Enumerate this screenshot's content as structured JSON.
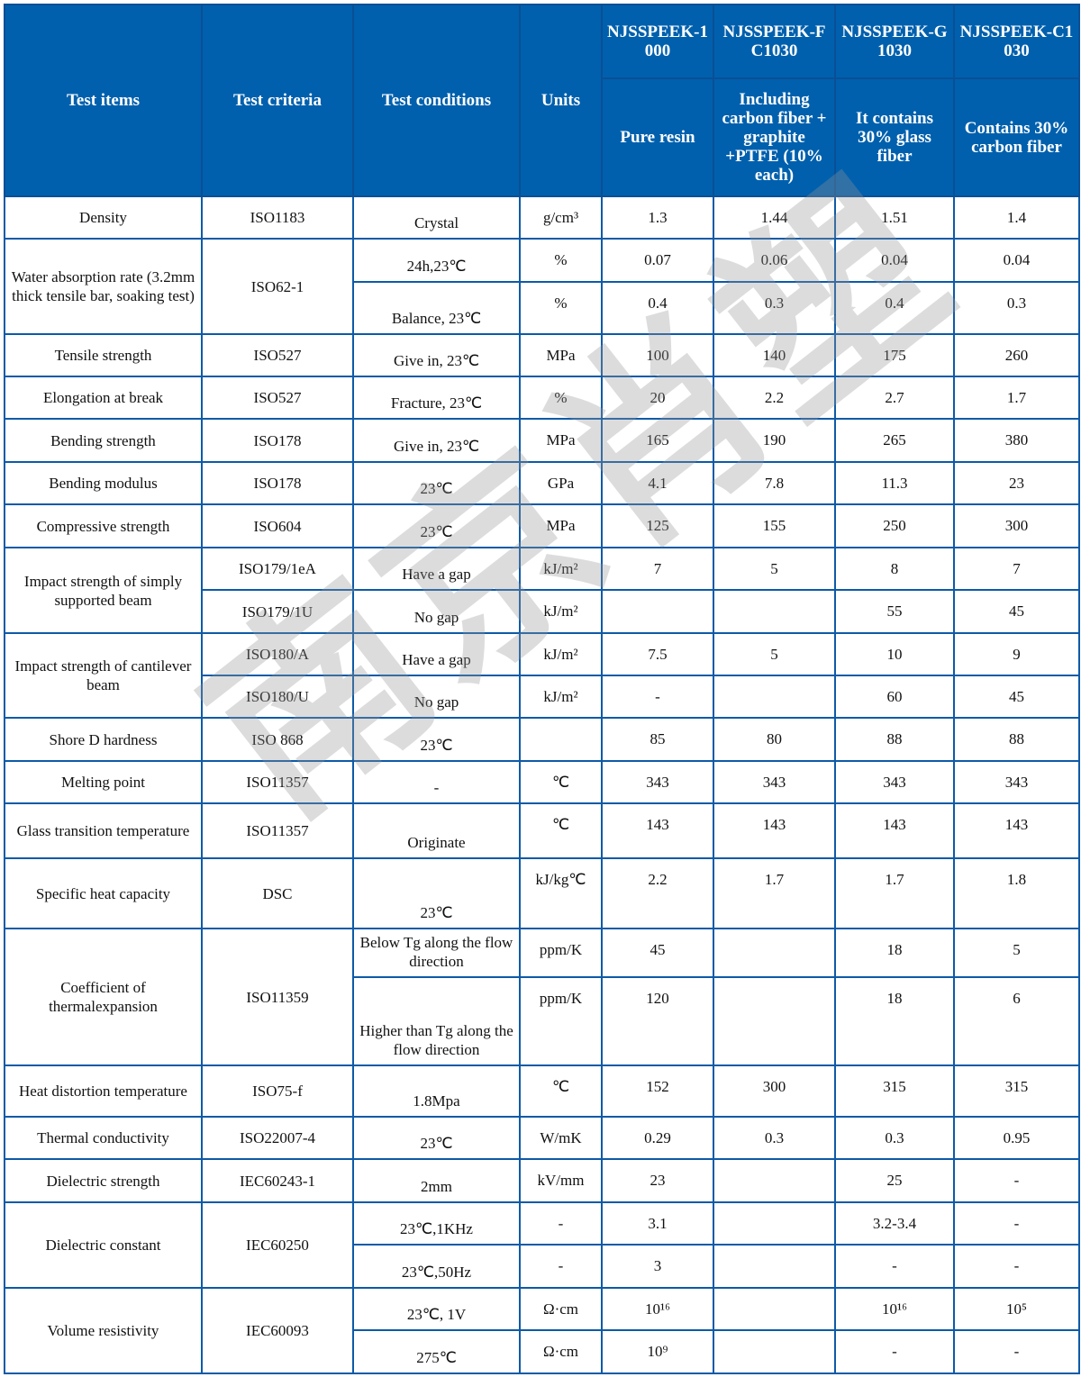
{
  "colors": {
    "header_bg": "#0060ad",
    "border": "#0d5aa7",
    "header_text": "#ffffff"
  },
  "watermark": "南京肖塑",
  "header": {
    "test_items": "Test items",
    "test_criteria": "Test criteria",
    "test_conditions": "Test conditions",
    "units": "Units",
    "grades": [
      {
        "name": "NJSSPEEK-1000",
        "desc": "Pure resin"
      },
      {
        "name": "NJSSPEEK-FC1030",
        "desc": "Including carbon fiber + graphite +PTFE (10% each)"
      },
      {
        "name": "NJSSPEEK-G1030",
        "desc": "It contains 30% glass fiber"
      },
      {
        "name": "NJSSPEEK-C1030",
        "desc": "Contains 30% carbon fiber"
      }
    ]
  },
  "rows": [
    [
      {
        "t": "Density"
      },
      {
        "t": "ISO1183"
      },
      {
        "t": "Crystal"
      },
      {
        "t": "g/cm³"
      },
      {
        "t": "1.3"
      },
      {
        "t": "1.44"
      },
      {
        "t": "1.51"
      },
      {
        "t": "1.4"
      }
    ],
    [
      {
        "t": "Water absorption rate (3.2mm thick tensile bar, soaking test)",
        "rs": 2
      },
      {
        "t": "ISO62-1",
        "rs": 2
      },
      {
        "t": "24h,23℃"
      },
      {
        "t": "%"
      },
      {
        "t": "0.07"
      },
      {
        "t": "0.06"
      },
      {
        "t": "0.04"
      },
      {
        "t": "0.04"
      }
    ],
    [
      {
        "t": "Balance, 23℃"
      },
      {
        "t": "%"
      },
      {
        "t": "0.4"
      },
      {
        "t": "0.3"
      },
      {
        "t": "0.4"
      },
      {
        "t": "0.3"
      }
    ],
    [
      {
        "t": "Tensile strength"
      },
      {
        "t": "ISO527"
      },
      {
        "t": "Give in, 23℃"
      },
      {
        "t": "MPa"
      },
      {
        "t": "100"
      },
      {
        "t": "140"
      },
      {
        "t": "175"
      },
      {
        "t": "260"
      }
    ],
    [
      {
        "t": "Elongation at break"
      },
      {
        "t": "ISO527"
      },
      {
        "t": "Fracture, 23℃"
      },
      {
        "t": "%"
      },
      {
        "t": "20"
      },
      {
        "t": "2.2"
      },
      {
        "t": "2.7"
      },
      {
        "t": "1.7"
      }
    ],
    [
      {
        "t": "Bending strength"
      },
      {
        "t": "ISO178"
      },
      {
        "t": "Give in, 23℃"
      },
      {
        "t": "MPa"
      },
      {
        "t": "165"
      },
      {
        "t": "190"
      },
      {
        "t": "265"
      },
      {
        "t": "380"
      }
    ],
    [
      {
        "t": "Bending modulus"
      },
      {
        "t": "ISO178"
      },
      {
        "t": "23℃"
      },
      {
        "t": "GPa"
      },
      {
        "t": "4.1"
      },
      {
        "t": "7.8"
      },
      {
        "t": "11.3"
      },
      {
        "t": "23"
      }
    ],
    [
      {
        "t": "Compressive strength"
      },
      {
        "t": "ISO604"
      },
      {
        "t": "23℃"
      },
      {
        "t": "MPa"
      },
      {
        "t": "125"
      },
      {
        "t": "155"
      },
      {
        "t": "250"
      },
      {
        "t": "300"
      }
    ],
    [
      {
        "t": "Impact strength of simply supported beam",
        "rs": 2
      },
      {
        "t": "ISO179/1eA"
      },
      {
        "t": "Have a gap"
      },
      {
        "t": "kJ/m²"
      },
      {
        "t": "7"
      },
      {
        "t": "5"
      },
      {
        "t": "8"
      },
      {
        "t": "7"
      }
    ],
    [
      {
        "t": "ISO179/1U"
      },
      {
        "t": "No gap"
      },
      {
        "t": "kJ/m²"
      },
      {
        "t": ""
      },
      {
        "t": ""
      },
      {
        "t": "55"
      },
      {
        "t": "45"
      }
    ],
    [
      {
        "t": "Impact strength of cantilever beam",
        "rs": 2
      },
      {
        "t": "ISO180/A"
      },
      {
        "t": "Have a gap"
      },
      {
        "t": "kJ/m²"
      },
      {
        "t": "7.5"
      },
      {
        "t": "5"
      },
      {
        "t": "10"
      },
      {
        "t": "9"
      }
    ],
    [
      {
        "t": "ISO180/U"
      },
      {
        "t": "No gap"
      },
      {
        "t": "kJ/m²"
      },
      {
        "t": "-"
      },
      {
        "t": ""
      },
      {
        "t": "60"
      },
      {
        "t": "45"
      }
    ],
    [
      {
        "t": "Shore D hardness"
      },
      {
        "t": "ISO 868"
      },
      {
        "t": "23℃"
      },
      {
        "t": ""
      },
      {
        "t": "85"
      },
      {
        "t": "80"
      },
      {
        "t": "88"
      },
      {
        "t": "88"
      }
    ],
    [
      {
        "t": "Melting point"
      },
      {
        "t": "ISO11357"
      },
      {
        "t": "-"
      },
      {
        "t": "℃"
      },
      {
        "t": "343"
      },
      {
        "t": "343"
      },
      {
        "t": "343"
      },
      {
        "t": "343"
      }
    ],
    [
      {
        "t": "Glass transition temperature"
      },
      {
        "t": "ISO11357"
      },
      {
        "t": "Originate"
      },
      {
        "t": "℃"
      },
      {
        "t": "143"
      },
      {
        "t": "143"
      },
      {
        "t": "143"
      },
      {
        "t": "143"
      }
    ],
    [
      {
        "t": "Specific heat capacity"
      },
      {
        "t": "DSC"
      },
      {
        "t": "23℃"
      },
      {
        "t": "kJ/kg℃"
      },
      {
        "t": "2.2"
      },
      {
        "t": "1.7"
      },
      {
        "t": "1.7"
      },
      {
        "t": "1.8"
      }
    ],
    [
      {
        "t": "Coefficient of thermalexpansion",
        "rs": 2
      },
      {
        "t": "ISO11359",
        "rs": 2
      },
      {
        "t": "Below Tg along the flow direction"
      },
      {
        "t": "ppm/K"
      },
      {
        "t": "45"
      },
      {
        "t": ""
      },
      {
        "t": "18"
      },
      {
        "t": "5"
      }
    ],
    [
      {
        "t": "Higher than Tg along the flow direction"
      },
      {
        "t": "ppm/K"
      },
      {
        "t": "120"
      },
      {
        "t": ""
      },
      {
        "t": "18"
      },
      {
        "t": "6"
      }
    ],
    [
      {
        "t": "Heat distortion temperature"
      },
      {
        "t": "ISO75-f"
      },
      {
        "t": "1.8Mpa"
      },
      {
        "t": "℃"
      },
      {
        "t": "152"
      },
      {
        "t": "300"
      },
      {
        "t": "315"
      },
      {
        "t": "315"
      }
    ],
    [
      {
        "t": "Thermal conductivity"
      },
      {
        "t": "ISO22007-4"
      },
      {
        "t": "23℃"
      },
      {
        "t": "W/mK"
      },
      {
        "t": "0.29"
      },
      {
        "t": "0.3"
      },
      {
        "t": "0.3"
      },
      {
        "t": "0.95"
      }
    ],
    [
      {
        "t": "Dielectric strength"
      },
      {
        "t": "IEC60243-1"
      },
      {
        "t": "2mm"
      },
      {
        "t": "kV/mm"
      },
      {
        "t": "23"
      },
      {
        "t": ""
      },
      {
        "t": "25"
      },
      {
        "t": "-"
      }
    ],
    [
      {
        "t": "Dielectric constant",
        "rs": 2
      },
      {
        "t": "IEC60250",
        "rs": 2
      },
      {
        "t": "23℃,1KHz"
      },
      {
        "t": "-"
      },
      {
        "t": "3.1"
      },
      {
        "t": ""
      },
      {
        "t": "3.2-3.4"
      },
      {
        "t": "-"
      }
    ],
    [
      {
        "t": "23℃,50Hz"
      },
      {
        "t": "-"
      },
      {
        "t": "3"
      },
      {
        "t": ""
      },
      {
        "t": "-"
      },
      {
        "t": "-"
      }
    ],
    [
      {
        "t": "Volume resistivity",
        "rs": 2
      },
      {
        "t": "IEC60093",
        "rs": 2
      },
      {
        "t": "23℃, 1V"
      },
      {
        "t": "Ω·cm"
      },
      {
        "t": "10¹⁶"
      },
      {
        "t": ""
      },
      {
        "t": "10¹⁶"
      },
      {
        "t": "10⁵"
      }
    ],
    [
      {
        "t": "275℃"
      },
      {
        "t": "Ω·cm"
      },
      {
        "t": "10⁹"
      },
      {
        "t": ""
      },
      {
        "t": "-"
      },
      {
        "t": "-"
      }
    ]
  ]
}
